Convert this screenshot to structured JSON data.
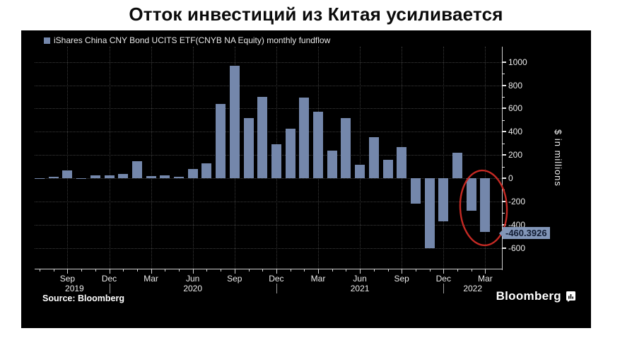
{
  "title": "Отток инвестиций из Китая усиливается",
  "legend": {
    "label": "iShares China CNY Bond UCITS ETF(CNYB NA Equity) monthly fundflow"
  },
  "source_note": "Source: Bloomberg",
  "brand": {
    "name": "Bloomberg",
    "icon": "bloomberg-terminal-icon"
  },
  "y_axis": {
    "title": "$ in millions",
    "tick_labels": [
      1000,
      800,
      600,
      400,
      200,
      0,
      -200,
      -400,
      -600
    ],
    "minor_tick_values": [
      900,
      700,
      500,
      300,
      100,
      -100,
      -300,
      -500
    ]
  },
  "x_axis": {
    "quarter_ticks": [
      {
        "label": "Sep",
        "index": 2
      },
      {
        "label": "Dec",
        "index": 5
      },
      {
        "label": "Mar",
        "index": 8
      },
      {
        "label": "Jun",
        "index": 11
      },
      {
        "label": "Sep",
        "index": 14
      },
      {
        "label": "Dec",
        "index": 17
      },
      {
        "label": "Mar",
        "index": 20
      },
      {
        "label": "Jun",
        "index": 23
      },
      {
        "label": "Sep",
        "index": 26
      },
      {
        "label": "Dec",
        "index": 29
      },
      {
        "label": "Mar",
        "index": 32
      }
    ],
    "year_labels": [
      {
        "label": "2019",
        "index": 2,
        "dx": 10
      },
      {
        "label": "2020",
        "index": 11,
        "dx": 0
      },
      {
        "label": "2021",
        "index": 23,
        "dx": 0
      },
      {
        "label": "2022",
        "index": 31,
        "dx": 2
      }
    ],
    "year_divider_indices": [
      5,
      17,
      29
    ]
  },
  "annotation": {
    "value_label": "-460.3926",
    "circled_months": [
      "Feb 2022",
      "Mar 2022"
    ]
  },
  "colors": {
    "bar": "#7487ab",
    "badge_bg": "#8296b8",
    "badge_text": "#111c33",
    "ellipse": "#c52a24",
    "panel_bg": "#000000"
  },
  "chart_data": {
    "type": "bar",
    "title": "Отток инвестиций из Китая усиливается",
    "series_name": "iShares China CNY Bond UCITS ETF(CNYB NA Equity) monthly fundflow",
    "ylabel": "$ in millions",
    "ylim": [
      -700,
      1100
    ],
    "grid": true,
    "legend_position": "top-left",
    "x": [
      "Jul 2019",
      "Aug 2019",
      "Sep 2019",
      "Oct 2019",
      "Nov 2019",
      "Dec 2019",
      "Jan 2020",
      "Feb 2020",
      "Mar 2020",
      "Apr 2020",
      "May 2020",
      "Jun 2020",
      "Jul 2020",
      "Aug 2020",
      "Sep 2020",
      "Oct 2020",
      "Nov 2020",
      "Dec 2020",
      "Jan 2021",
      "Feb 2021",
      "Mar 2021",
      "Apr 2021",
      "May 2021",
      "Jun 2021",
      "Jul 2021",
      "Aug 2021",
      "Sep 2021",
      "Oct 2021",
      "Nov 2021",
      "Dec 2021",
      "Jan 2022",
      "Feb 2022",
      "Mar 2022"
    ],
    "values": [
      -5,
      15,
      70,
      -5,
      22,
      22,
      36,
      145,
      18,
      25,
      15,
      80,
      125,
      640,
      970,
      520,
      700,
      290,
      425,
      695,
      575,
      235,
      520,
      115,
      355,
      160,
      270,
      -220,
      -600,
      -370,
      220,
      -280,
      -460.3926
    ],
    "highlighted_last_value": -460.3926
  }
}
